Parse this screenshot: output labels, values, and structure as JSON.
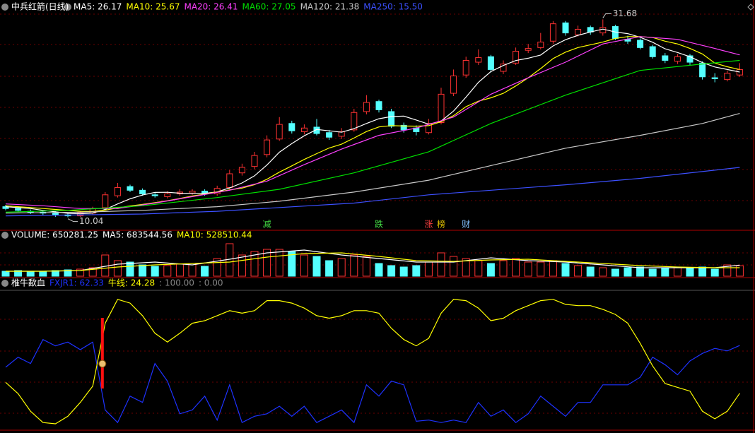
{
  "chart_data": [
    {
      "type": "candlestick",
      "title": "中兵红箭(日线)",
      "title_color": "#ffffff",
      "up_color": "#ff3232",
      "down_color": "#54ffff",
      "ylim": [
        8.7,
        33.8
      ],
      "open": [
        11.2,
        11.0,
        10.7,
        10.6,
        10.5,
        10.3,
        10.2,
        10.5,
        11.1,
        12.4,
        13.4,
        13.0,
        12.5,
        12.3,
        12.6,
        12.7,
        12.9,
        12.6,
        13.3,
        14.9,
        15.6,
        16.9,
        18.6,
        20.3,
        19.4,
        19.9,
        19.3,
        18.9,
        19.6,
        21.6,
        22.7,
        21.6,
        20.1,
        19.8,
        19.3,
        20.4,
        23.6,
        25.6,
        27.0,
        27.6,
        26.0,
        26.9,
        28.3,
        28.6,
        29.3,
        31.3,
        30.0,
        30.8,
        30.2,
        30.9,
        29.5,
        29.4,
        28.7,
        27.7,
        27.1,
        27.7,
        26.9,
        25.3,
        25.1,
        25.6
      ],
      "high": [
        11.4,
        11.2,
        10.9,
        10.8,
        10.7,
        10.5,
        10.7,
        11.2,
        12.8,
        13.8,
        13.6,
        13.2,
        12.7,
        12.9,
        13.1,
        13.1,
        13.1,
        13.5,
        15.2,
        15.9,
        17.2,
        19.0,
        21.0,
        20.6,
        20.2,
        20.8,
        19.6,
        19.8,
        21.9,
        23.4,
        22.9,
        21.9,
        20.4,
        20.1,
        20.8,
        24.2,
        26.2,
        27.6,
        28.4,
        27.8,
        27.2,
        28.6,
        29.0,
        30.2,
        31.5,
        31.5,
        31.0,
        31.0,
        31.68,
        31.1,
        29.9,
        29.6,
        28.9,
        28.0,
        27.9,
        27.9,
        27.1,
        25.8,
        26.1,
        26.9
      ],
      "low": [
        10.8,
        10.6,
        10.4,
        10.3,
        10.1,
        10.04,
        10.1,
        10.3,
        10.9,
        12.2,
        12.8,
        12.4,
        12.2,
        12.1,
        12.4,
        12.5,
        12.4,
        12.4,
        13.1,
        14.6,
        15.3,
        16.6,
        18.4,
        19.2,
        19.1,
        19.0,
        18.5,
        18.6,
        19.4,
        21.3,
        21.5,
        19.8,
        19.3,
        19.0,
        19.1,
        20.2,
        23.3,
        25.3,
        26.7,
        25.9,
        25.7,
        26.7,
        28.0,
        28.4,
        29.0,
        29.9,
        29.8,
        30.0,
        29.9,
        29.4,
        29.0,
        28.4,
        27.4,
        26.9,
        26.8,
        26.7,
        25.1,
        24.8,
        24.9,
        25.4
      ],
      "close": [
        11.0,
        10.8,
        10.6,
        10.5,
        10.3,
        10.2,
        10.5,
        11.0,
        12.5,
        13.3,
        13.0,
        12.6,
        12.4,
        12.6,
        12.8,
        12.9,
        12.6,
        13.2,
        14.8,
        15.5,
        16.8,
        18.5,
        20.2,
        19.5,
        19.8,
        19.2,
        18.8,
        19.4,
        21.5,
        22.6,
        21.8,
        20.0,
        19.6,
        19.4,
        20.3,
        23.5,
        25.5,
        27.2,
        27.5,
        26.2,
        26.8,
        28.2,
        28.5,
        29.2,
        31.2,
        30.2,
        30.6,
        30.3,
        30.8,
        29.6,
        29.3,
        28.6,
        27.6,
        27.2,
        27.6,
        27.0,
        25.4,
        25.2,
        25.8,
        26.2
      ],
      "series": [
        {
          "label": "MA5: 26.17",
          "color": "#ffffff",
          "x": [
            0,
            1,
            2,
            3,
            4,
            5,
            6,
            7,
            8,
            9,
            10,
            11,
            12,
            13,
            14,
            15,
            16,
            17,
            18,
            19,
            20,
            21,
            22,
            23,
            24,
            25,
            26,
            27,
            28,
            29,
            30,
            31,
            32,
            33,
            34,
            35,
            36,
            37,
            38,
            39,
            40,
            41,
            42,
            43,
            44,
            45,
            46,
            47,
            48,
            49,
            50,
            51,
            52,
            53,
            54,
            55,
            56,
            57,
            58,
            59
          ],
          "values": [
            11.2,
            11.1,
            11.0,
            10.8,
            10.64,
            10.48,
            10.42,
            10.5,
            10.9,
            11.5,
            12.06,
            12.48,
            12.76,
            12.78,
            12.68,
            12.66,
            12.66,
            12.82,
            13.26,
            13.8,
            14.58,
            15.76,
            17.16,
            18.1,
            18.96,
            19.64,
            19.5,
            19.34,
            19.74,
            20.3,
            20.82,
            21.06,
            21.1,
            20.68,
            20.22,
            20.56,
            21.66,
            23.18,
            24.8,
            25.98,
            26.64,
            27.18,
            27.44,
            27.78,
            28.78,
            29.46,
            29.94,
            30.3,
            30.62,
            30.3,
            30.12,
            29.72,
            29.18,
            28.46,
            28.06,
            27.6,
            26.96,
            26.48,
            26.2,
            25.92
          ]
        },
        {
          "label": "MA10: 25.67",
          "color": "#ffff00",
          "x": [
            0,
            1,
            2,
            3,
            4,
            5,
            6,
            7,
            8,
            9,
            10,
            11,
            12,
            13,
            14,
            15,
            16,
            17,
            18,
            19,
            20,
            21,
            22,
            23,
            24,
            25,
            26,
            27,
            28,
            29,
            30,
            31,
            32,
            33,
            34,
            35,
            36,
            37,
            38,
            39,
            40,
            41,
            42,
            43,
            44,
            45,
            46,
            47,
            48,
            49,
            50,
            51,
            52,
            53,
            54,
            55,
            56,
            57,
            58,
            59
          ],
          "values": [
            11.3,
            11.2,
            11.1,
            11.0,
            10.9,
            10.8,
            10.7,
            10.68,
            10.82,
            11.07,
            11.28,
            11.46,
            11.64,
            11.85,
            12.1,
            12.37,
            12.58,
            12.8,
            13.03,
            13.23,
            13.61,
            14.2,
            14.98,
            15.67,
            16.37,
            17.0,
            17.62,
            18.04,
            18.71,
            19.42,
            19.92,
            20.07,
            20.02,
            20.01,
            20.06,
            20.49,
            21.16,
            22.14,
            22.74,
            23.1,
            23.6,
            24.4,
            25.3,
            26.3,
            27.4,
            28.1,
            28.6,
            28.9,
            29.2,
            29.6,
            29.8,
            29.8,
            29.7,
            29.3,
            29.0,
            28.5,
            27.9,
            26.9,
            26.5,
            26.2
          ]
        },
        {
          "label": "MA20: 26.41",
          "color": "#ff40ff",
          "x": [
            0,
            3,
            6,
            9,
            12,
            15,
            18,
            21,
            24,
            27,
            30,
            33,
            36,
            39,
            42,
            45,
            48,
            51,
            54,
            57,
            59
          ],
          "values": [
            11.5,
            11.3,
            11.0,
            11.0,
            11.6,
            12.3,
            13.0,
            14.0,
            15.8,
            17.5,
            19.0,
            19.8,
            21.0,
            23.5,
            25.3,
            27.0,
            29.0,
            29.8,
            29.5,
            28.5,
            27.8
          ]
        },
        {
          "label": "MA60: 27.05",
          "color": "#00e000",
          "x": [
            0,
            5,
            11,
            17,
            22,
            28,
            34,
            39,
            45,
            51,
            56,
            59
          ],
          "values": [
            10.6,
            10.8,
            11.3,
            12.2,
            13.1,
            14.9,
            17.2,
            20.3,
            23.4,
            26.1,
            26.8,
            27.2
          ]
        },
        {
          "label": "MA120: 21.38",
          "color": "#c8c8c8",
          "x": [
            0,
            6,
            11,
            17,
            22,
            28,
            34,
            39,
            45,
            51,
            56,
            59
          ],
          "values": [
            10.5,
            10.6,
            10.8,
            11.2,
            11.8,
            12.8,
            14.1,
            15.7,
            17.6,
            19.0,
            20.3,
            21.4
          ]
        },
        {
          "label": "MA250: 15.50",
          "color": "#3c50ff",
          "x": [
            0,
            11,
            17,
            28,
            34,
            45,
            51,
            59
          ],
          "values": [
            10.2,
            10.4,
            10.7,
            11.6,
            12.5,
            13.6,
            14.3,
            15.5
          ]
        }
      ],
      "events": [
        {
          "x": 21,
          "label": "减",
          "color": "#44dd44"
        },
        {
          "x": 30,
          "label": "跌",
          "color": "#44dd44"
        },
        {
          "x": 34,
          "label": "涨",
          "color": "#ff4040"
        },
        {
          "x": 35,
          "label": "榜",
          "color": "#e0c000"
        },
        {
          "x": 37,
          "label": "财",
          "color": "#80c0ff"
        }
      ]
    },
    {
      "type": "bar",
      "title": "VOLUME: 650281.25",
      "title_color": "#ffffff",
      "ylim": [
        0,
        2150000
      ],
      "values": [
        307000,
        351000,
        307000,
        263000,
        351000,
        395000,
        439000,
        527000,
        1317000,
        966000,
        878000,
        702000,
        615000,
        659000,
        746000,
        790000,
        615000,
        1098000,
        2019000,
        1317000,
        1537000,
        1668000,
        1668000,
        1537000,
        1317000,
        1229000,
        966000,
        1098000,
        1317000,
        1229000,
        790000,
        659000,
        571000,
        659000,
        878000,
        1449000,
        1229000,
        1098000,
        966000,
        790000,
        966000,
        1098000,
        878000,
        878000,
        966000,
        790000,
        659000,
        571000,
        527000,
        439000,
        527000,
        571000,
        439000,
        483000,
        527000,
        527000,
        571000,
        439000,
        702000,
        650281.25
      ],
      "series": [
        {
          "label": "MA5: 683544.56",
          "color": "#ffffff",
          "x": [
            0,
            3,
            6,
            9,
            12,
            15,
            18,
            21,
            24,
            27,
            30,
            33,
            36,
            39,
            42,
            45,
            48,
            51,
            54,
            57,
            59
          ],
          "values": [
            307000,
            307000,
            351000,
            746000,
            878000,
            702000,
            1054000,
            1449000,
            1624000,
            1317000,
            1098000,
            878000,
            878000,
            1141000,
            966000,
            878000,
            702000,
            527000,
            527000,
            527000,
            683544.56
          ]
        },
        {
          "label": "MA10: 528510.44",
          "color": "#ffff00",
          "x": [
            0,
            3,
            6,
            9,
            12,
            15,
            18,
            21,
            24,
            27,
            30,
            33,
            36,
            39,
            42,
            45,
            48,
            51,
            54,
            57,
            59
          ],
          "values": [
            307000,
            307000,
            351000,
            571000,
            702000,
            790000,
            878000,
            1185000,
            1405000,
            1449000,
            1229000,
            966000,
            922000,
            1010000,
            1054000,
            922000,
            790000,
            659000,
            571000,
            527000,
            528510.44
          ]
        }
      ]
    },
    {
      "type": "line",
      "title": "椎牛歃血",
      "title_color": "#ffffff",
      "ylim": [
        0,
        100
      ],
      "ref_labels": [
        ": 100.00",
        ": 0.00"
      ],
      "signals": [
        8
      ],
      "series": [
        {
          "label": "FXJR1: 62.33",
          "color": "#1e32ff",
          "values": [
            45,
            53,
            48,
            67,
            62,
            65,
            59,
            65,
            11,
            1,
            22,
            17,
            48,
            34,
            8,
            11,
            22,
            3,
            31,
            1,
            6,
            8,
            14,
            6,
            14,
            1,
            6,
            11,
            1,
            31,
            22,
            34,
            31,
            2,
            3,
            1,
            3,
            1,
            17,
            6,
            11,
            1,
            8,
            22,
            14,
            6,
            17,
            17,
            31,
            31,
            31,
            37,
            53,
            47,
            39,
            50,
            56,
            60,
            58,
            62.33
          ]
        },
        {
          "label": "牛线: 24.28",
          "color": "#ffff00",
          "values": [
            33,
            24,
            10,
            1,
            0,
            6,
            17,
            30,
            80,
            99,
            96,
            86,
            72,
            65,
            72,
            80,
            82,
            86,
            90,
            88,
            90,
            98,
            98,
            96,
            92,
            86,
            84,
            86,
            90,
            90,
            88,
            76,
            67,
            62,
            68,
            88,
            99,
            98,
            92,
            82,
            84,
            90,
            94,
            98,
            99,
            95,
            94,
            94,
            91,
            87,
            80,
            64,
            46,
            32,
            29,
            26,
            10,
            4,
            10,
            24.28
          ]
        }
      ]
    }
  ]
}
